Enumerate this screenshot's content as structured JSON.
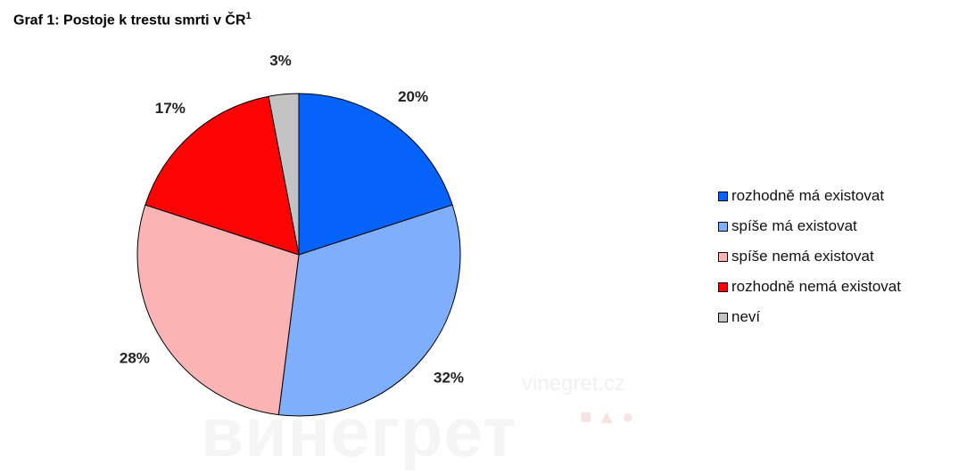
{
  "header": {
    "title": "Graf 1: Postoje k trestu smrti v ČR",
    "footnote_mark": "1"
  },
  "watermark": {
    "url": "vinegret.cz",
    "logo_text": "винегрет",
    "dots": "■▲●"
  },
  "chart_data": {
    "type": "pie",
    "title": "Graf 1: Postoje k trestu smrti v ČR",
    "legend_position": "right",
    "slices": [
      {
        "name": "rozhodně má existovat",
        "value": 20,
        "label": "20%",
        "color": "#0563fa"
      },
      {
        "name": "spíše má existovat",
        "value": 32,
        "label": "32%",
        "color": "#7eaefc"
      },
      {
        "name": "spíše nemá existovat",
        "value": 28,
        "label": "28%",
        "color": "#fcb3b3"
      },
      {
        "name": "rozhodně nemá existovat",
        "value": 17,
        "label": "17%",
        "color": "#fc0404"
      },
      {
        "name": "neví",
        "value": 3,
        "label": "3%",
        "color": "#c3c3c3"
      }
    ]
  }
}
